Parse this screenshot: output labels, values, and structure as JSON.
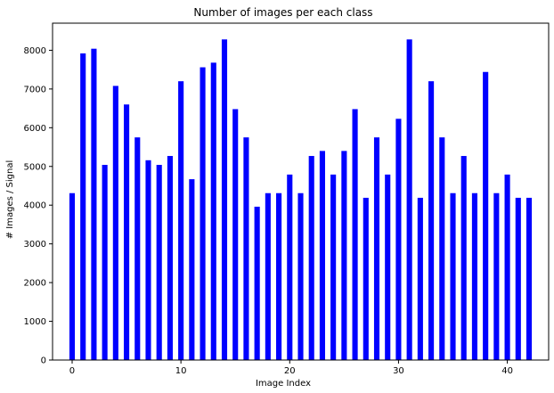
{
  "chart_data": {
    "type": "bar",
    "title": "Number of images per each class",
    "xlabel": "Image Index",
    "ylabel": "# Images / Signal",
    "x": [
      0,
      1,
      2,
      3,
      4,
      5,
      6,
      7,
      8,
      9,
      10,
      11,
      12,
      13,
      14,
      15,
      16,
      17,
      18,
      19,
      20,
      21,
      22,
      23,
      24,
      25,
      26,
      27,
      28,
      29,
      30,
      31,
      32,
      33,
      34,
      35,
      36,
      37,
      38,
      39,
      40,
      41,
      42
    ],
    "values": [
      4310,
      7920,
      8040,
      5040,
      7080,
      6600,
      5750,
      5160,
      5040,
      5270,
      7200,
      4670,
      7560,
      7680,
      8280,
      6480,
      5750,
      3960,
      4310,
      4310,
      4790,
      4310,
      5270,
      5400,
      4790,
      5400,
      6480,
      4190,
      5750,
      4790,
      6230,
      8280,
      4190,
      7200,
      5750,
      4310,
      5270,
      4310,
      7440,
      4310,
      4790,
      4190,
      4190
    ],
    "xticks": [
      0,
      10,
      20,
      30,
      40
    ],
    "yticks": [
      0,
      1000,
      2000,
      3000,
      4000,
      5000,
      6000,
      7000,
      8000
    ],
    "xlim": [
      -1.8,
      43.8
    ],
    "ylim": [
      0,
      8700
    ],
    "bar_color": "#0000ff",
    "grid": false,
    "legend": false
  }
}
